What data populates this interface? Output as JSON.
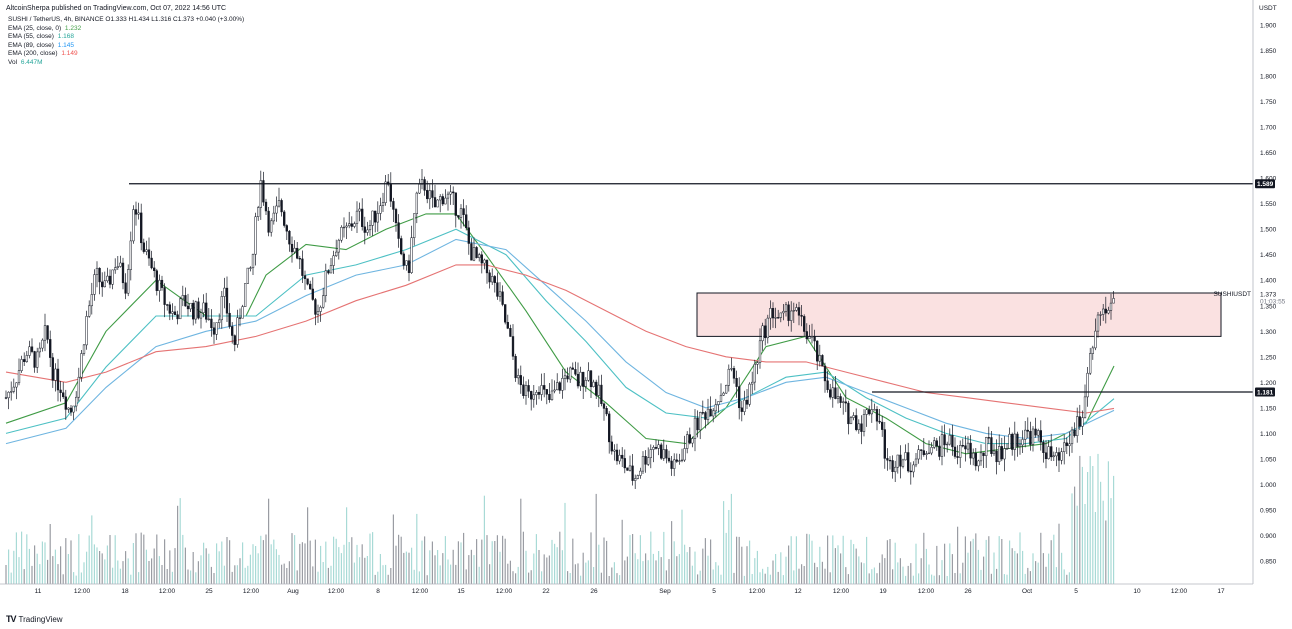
{
  "header": {
    "published": "AltcoinSherpa published on TradingView.com, Oct 07, 2022 14:56 UTC"
  },
  "legend": {
    "symbol_line": "SUSHI / TetherUS, 4h, BINANCE  O1.333  H1.434  L1.316  C1.373  +0.040 (+3.00%)",
    "indicators": [
      {
        "label": "EMA (25, close, 0)",
        "value": "1.232",
        "color": "#43a047"
      },
      {
        "label": "EMA (55, close)",
        "value": "1.168",
        "color": "#26a69a"
      },
      {
        "label": "EMA (89, close)",
        "value": "1.145",
        "color": "#2196f3"
      },
      {
        "label": "EMA (200, close)",
        "value": "1.149",
        "color": "#ef5350"
      },
      {
        "label": "Vol",
        "value": "6.447M",
        "color": "#26a69a"
      }
    ]
  },
  "price_scale": {
    "currency": "USDT",
    "ticks": [
      "1.900",
      "1.850",
      "1.800",
      "1.750",
      "1.700",
      "1.650",
      "1.600",
      "1.550",
      "1.500",
      "1.450",
      "1.400",
      "1.350",
      "1.300",
      "1.250",
      "1.200",
      "1.150",
      "1.100",
      "1.050",
      "1.000",
      "0.950",
      "0.900",
      "0.850"
    ],
    "tick_values": [
      1.9,
      1.85,
      1.8,
      1.75,
      1.7,
      1.65,
      1.6,
      1.55,
      1.5,
      1.45,
      1.4,
      1.35,
      1.3,
      1.25,
      1.2,
      1.15,
      1.1,
      1.05,
      1.0,
      0.95,
      0.9,
      0.85
    ],
    "level_labels": [
      {
        "text": "1.589",
        "value": 1.589
      },
      {
        "text": "1.181",
        "value": 1.181
      }
    ],
    "last_price": "1.373",
    "countdown": "01:03:55",
    "symbol_tag": "SUSHIUSDT"
  },
  "time_scale": {
    "labels": [
      "11",
      "12:00",
      "18",
      "12:00",
      "25",
      "12:00",
      "Aug",
      "12:00",
      "8",
      "12:00",
      "15",
      "12:00",
      "22",
      "26",
      "Sep",
      "5",
      "12:00",
      "12",
      "12:00",
      "19",
      "12:00",
      "26",
      "Oct",
      "5",
      "10",
      "12:00",
      "17"
    ]
  },
  "footer": {
    "brand": "TradingView"
  },
  "chart_data": {
    "type": "candlestick",
    "symbol": "SUSHI / TetherUS",
    "interval": "4h",
    "exchange": "BINANCE",
    "ylim": [
      0.8,
      1.93
    ],
    "horizontal_levels": [
      1.589,
      1.181
    ],
    "zone": {
      "low": 1.29,
      "high": 1.375
    },
    "close_path": [
      {
        "t": 0,
        "v": 1.17
      },
      {
        "t": 10,
        "v": 1.21
      },
      {
        "t": 20,
        "v": 1.26
      },
      {
        "t": 32,
        "v": 1.24
      },
      {
        "t": 40,
        "v": 1.3
      },
      {
        "t": 48,
        "v": 1.21
      },
      {
        "t": 56,
        "v": 1.19
      },
      {
        "t": 64,
        "v": 1.14
      },
      {
        "t": 72,
        "v": 1.2
      },
      {
        "t": 80,
        "v": 1.32
      },
      {
        "t": 90,
        "v": 1.41
      },
      {
        "t": 100,
        "v": 1.38
      },
      {
        "t": 110,
        "v": 1.44
      },
      {
        "t": 120,
        "v": 1.39
      },
      {
        "t": 128,
        "v": 1.56
      },
      {
        "t": 138,
        "v": 1.46
      },
      {
        "t": 148,
        "v": 1.41
      },
      {
        "t": 158,
        "v": 1.36
      },
      {
        "t": 168,
        "v": 1.33
      },
      {
        "t": 178,
        "v": 1.36
      },
      {
        "t": 188,
        "v": 1.34
      },
      {
        "t": 198,
        "v": 1.34
      },
      {
        "t": 208,
        "v": 1.31
      },
      {
        "t": 218,
        "v": 1.37
      },
      {
        "t": 228,
        "v": 1.27
      },
      {
        "t": 238,
        "v": 1.38
      },
      {
        "t": 246,
        "v": 1.43
      },
      {
        "t": 254,
        "v": 1.6
      },
      {
        "t": 264,
        "v": 1.5
      },
      {
        "t": 274,
        "v": 1.55
      },
      {
        "t": 284,
        "v": 1.48
      },
      {
        "t": 292,
        "v": 1.45
      },
      {
        "t": 302,
        "v": 1.37
      },
      {
        "t": 312,
        "v": 1.34
      },
      {
        "t": 322,
        "v": 1.42
      },
      {
        "t": 332,
        "v": 1.48
      },
      {
        "t": 342,
        "v": 1.5
      },
      {
        "t": 352,
        "v": 1.53
      },
      {
        "t": 362,
        "v": 1.5
      },
      {
        "t": 372,
        "v": 1.54
      },
      {
        "t": 382,
        "v": 1.6
      },
      {
        "t": 392,
        "v": 1.47
      },
      {
        "t": 402,
        "v": 1.41
      },
      {
        "t": 410,
        "v": 1.56
      },
      {
        "t": 418,
        "v": 1.59
      },
      {
        "t": 428,
        "v": 1.54
      },
      {
        "t": 438,
        "v": 1.57
      },
      {
        "t": 448,
        "v": 1.55
      },
      {
        "t": 456,
        "v": 1.53
      },
      {
        "t": 464,
        "v": 1.46
      },
      {
        "t": 474,
        "v": 1.43
      },
      {
        "t": 484,
        "v": 1.41
      },
      {
        "t": 494,
        "v": 1.36
      },
      {
        "t": 504,
        "v": 1.28
      },
      {
        "t": 512,
        "v": 1.2
      },
      {
        "t": 522,
        "v": 1.17
      },
      {
        "t": 532,
        "v": 1.2
      },
      {
        "t": 542,
        "v": 1.16
      },
      {
        "t": 552,
        "v": 1.19
      },
      {
        "t": 562,
        "v": 1.22
      },
      {
        "t": 572,
        "v": 1.2
      },
      {
        "t": 582,
        "v": 1.22
      },
      {
        "t": 592,
        "v": 1.18
      },
      {
        "t": 600,
        "v": 1.13
      },
      {
        "t": 608,
        "v": 1.06
      },
      {
        "t": 618,
        "v": 1.04
      },
      {
        "t": 628,
        "v": 1.01
      },
      {
        "t": 638,
        "v": 1.05
      },
      {
        "t": 648,
        "v": 1.08
      },
      {
        "t": 658,
        "v": 1.06
      },
      {
        "t": 668,
        "v": 1.03
      },
      {
        "t": 678,
        "v": 1.07
      },
      {
        "t": 688,
        "v": 1.11
      },
      {
        "t": 698,
        "v": 1.14
      },
      {
        "t": 708,
        "v": 1.16
      },
      {
        "t": 718,
        "v": 1.19
      },
      {
        "t": 726,
        "v": 1.23
      },
      {
        "t": 736,
        "v": 1.14
      },
      {
        "t": 746,
        "v": 1.2
      },
      {
        "t": 756,
        "v": 1.29
      },
      {
        "t": 766,
        "v": 1.34
      },
      {
        "t": 776,
        "v": 1.32
      },
      {
        "t": 786,
        "v": 1.35
      },
      {
        "t": 796,
        "v": 1.31
      },
      {
        "t": 806,
        "v": 1.28
      },
      {
        "t": 816,
        "v": 1.22
      },
      {
        "t": 826,
        "v": 1.18
      },
      {
        "t": 836,
        "v": 1.15
      },
      {
        "t": 846,
        "v": 1.13
      },
      {
        "t": 856,
        "v": 1.12
      },
      {
        "t": 866,
        "v": 1.16
      },
      {
        "t": 874,
        "v": 1.12
      },
      {
        "t": 882,
        "v": 1.03
      },
      {
        "t": 892,
        "v": 1.06
      },
      {
        "t": 902,
        "v": 1.04
      },
      {
        "t": 912,
        "v": 1.05
      },
      {
        "t": 922,
        "v": 1.08
      },
      {
        "t": 932,
        "v": 1.07
      },
      {
        "t": 942,
        "v": 1.09
      },
      {
        "t": 952,
        "v": 1.06
      },
      {
        "t": 962,
        "v": 1.07
      },
      {
        "t": 972,
        "v": 1.04
      },
      {
        "t": 982,
        "v": 1.08
      },
      {
        "t": 992,
        "v": 1.06
      },
      {
        "t": 1002,
        "v": 1.08
      },
      {
        "t": 1012,
        "v": 1.09
      },
      {
        "t": 1022,
        "v": 1.1
      },
      {
        "t": 1032,
        "v": 1.09
      },
      {
        "t": 1042,
        "v": 1.06
      },
      {
        "t": 1052,
        "v": 1.04
      },
      {
        "t": 1062,
        "v": 1.08
      },
      {
        "t": 1072,
        "v": 1.12
      },
      {
        "t": 1078,
        "v": 1.15
      },
      {
        "t": 1084,
        "v": 1.27
      },
      {
        "t": 1090,
        "v": 1.3
      },
      {
        "t": 1096,
        "v": 1.34
      },
      {
        "t": 1102,
        "v": 1.32
      },
      {
        "t": 1108,
        "v": 1.373
      }
    ],
    "ema_lines": [
      {
        "name": "EMA (25, close, 0)",
        "color": "#3f9b45",
        "points": [
          [
            0,
            1.12
          ],
          [
            60,
            1.16
          ],
          [
            100,
            1.3
          ],
          [
            150,
            1.4
          ],
          [
            200,
            1.33
          ],
          [
            240,
            1.33
          ],
          [
            260,
            1.41
          ],
          [
            300,
            1.47
          ],
          [
            340,
            1.46
          ],
          [
            380,
            1.5
          ],
          [
            420,
            1.53
          ],
          [
            450,
            1.53
          ],
          [
            480,
            1.45
          ],
          [
            520,
            1.34
          ],
          [
            560,
            1.22
          ],
          [
            600,
            1.16
          ],
          [
            640,
            1.09
          ],
          [
            680,
            1.08
          ],
          [
            720,
            1.15
          ],
          [
            760,
            1.27
          ],
          [
            800,
            1.29
          ],
          [
            840,
            1.17
          ],
          [
            880,
            1.13
          ],
          [
            920,
            1.08
          ],
          [
            960,
            1.06
          ],
          [
            1000,
            1.07
          ],
          [
            1040,
            1.08
          ],
          [
            1080,
            1.12
          ],
          [
            1108,
            1.232
          ]
        ]
      },
      {
        "name": "EMA (55, close)",
        "color": "#4dc0c4",
        "points": [
          [
            0,
            1.1
          ],
          [
            60,
            1.13
          ],
          [
            100,
            1.23
          ],
          [
            150,
            1.33
          ],
          [
            200,
            1.33
          ],
          [
            250,
            1.33
          ],
          [
            300,
            1.41
          ],
          [
            350,
            1.43
          ],
          [
            400,
            1.46
          ],
          [
            450,
            1.5
          ],
          [
            500,
            1.45
          ],
          [
            540,
            1.36
          ],
          [
            580,
            1.28
          ],
          [
            620,
            1.19
          ],
          [
            660,
            1.14
          ],
          [
            700,
            1.13
          ],
          [
            740,
            1.17
          ],
          [
            780,
            1.21
          ],
          [
            820,
            1.22
          ],
          [
            860,
            1.17
          ],
          [
            900,
            1.13
          ],
          [
            940,
            1.1
          ],
          [
            980,
            1.08
          ],
          [
            1020,
            1.08
          ],
          [
            1060,
            1.09
          ],
          [
            1108,
            1.168
          ]
        ]
      },
      {
        "name": "EMA (89, close)",
        "color": "#6fb5e0",
        "points": [
          [
            0,
            1.08
          ],
          [
            60,
            1.11
          ],
          [
            100,
            1.19
          ],
          [
            150,
            1.27
          ],
          [
            200,
            1.3
          ],
          [
            250,
            1.32
          ],
          [
            300,
            1.37
          ],
          [
            350,
            1.41
          ],
          [
            400,
            1.43
          ],
          [
            450,
            1.48
          ],
          [
            500,
            1.46
          ],
          [
            540,
            1.39
          ],
          [
            580,
            1.32
          ],
          [
            620,
            1.24
          ],
          [
            660,
            1.18
          ],
          [
            700,
            1.15
          ],
          [
            740,
            1.17
          ],
          [
            780,
            1.2
          ],
          [
            820,
            1.21
          ],
          [
            860,
            1.18
          ],
          [
            900,
            1.15
          ],
          [
            940,
            1.12
          ],
          [
            980,
            1.1
          ],
          [
            1020,
            1.09
          ],
          [
            1060,
            1.1
          ],
          [
            1108,
            1.145
          ]
        ]
      },
      {
        "name": "EMA (200, close)",
        "color": "#e57373",
        "points": [
          [
            0,
            1.22
          ],
          [
            60,
            1.2
          ],
          [
            100,
            1.22
          ],
          [
            150,
            1.26
          ],
          [
            200,
            1.27
          ],
          [
            250,
            1.29
          ],
          [
            300,
            1.32
          ],
          [
            350,
            1.36
          ],
          [
            400,
            1.39
          ],
          [
            450,
            1.43
          ],
          [
            480,
            1.43
          ],
          [
            520,
            1.41
          ],
          [
            560,
            1.38
          ],
          [
            600,
            1.34
          ],
          [
            640,
            1.3
          ],
          [
            680,
            1.27
          ],
          [
            720,
            1.25
          ],
          [
            760,
            1.24
          ],
          [
            800,
            1.24
          ],
          [
            840,
            1.22
          ],
          [
            880,
            1.2
          ],
          [
            920,
            1.18
          ],
          [
            960,
            1.17
          ],
          [
            1000,
            1.16
          ],
          [
            1040,
            1.15
          ],
          [
            1080,
            1.14
          ],
          [
            1108,
            1.149
          ]
        ]
      }
    ]
  }
}
